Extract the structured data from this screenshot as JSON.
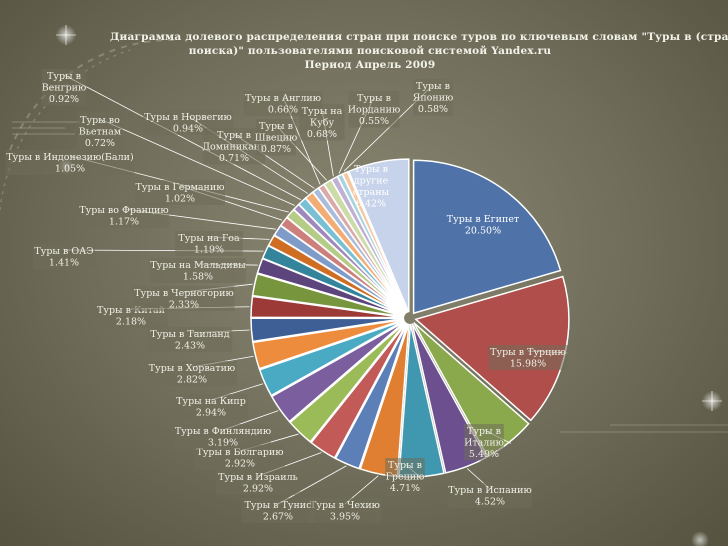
{
  "chart_data": {
    "type": "pie",
    "title_lines": [
      "Диаграмма долевого распределения стран при поиске туров по ключевым словам \"Туры в (страна",
      "поиска)\" пользователями поисковой системой Yandex.ru",
      "Период Апрель 2009"
    ],
    "slices": [
      {
        "label_lines": [
          "Туры в Египет"
        ],
        "value_text": "20.50%",
        "value": 20.5,
        "color": "#4f73a8"
      },
      {
        "label_lines": [
          "Туры в Турцию"
        ],
        "value_text": "15.98%",
        "value": 15.98,
        "color": "#b04e4b"
      },
      {
        "label_lines": [
          "Туры в",
          "Италию"
        ],
        "value_text": "5.49%",
        "value": 5.49,
        "color": "#8aa84c"
      },
      {
        "label_lines": [
          "Туры в Испанию"
        ],
        "value_text": "4.52%",
        "value": 4.52,
        "color": "#6b4f8e"
      },
      {
        "label_lines": [
          "Туры в",
          "Грецию"
        ],
        "value_text": "4.71%",
        "value": 4.71,
        "color": "#3f98b0"
      },
      {
        "label_lines": [
          "Туры в Чехию"
        ],
        "value_text": "3.95%",
        "value": 3.95,
        "color": "#e07f32"
      },
      {
        "label_lines": [
          "Туры в Тунис"
        ],
        "value_text": "2.67%",
        "value": 2.67,
        "color": "#5d7fb8"
      },
      {
        "label_lines": [
          "Туры в Израиль"
        ],
        "value_text": "2.92%",
        "value": 2.92,
        "color": "#c25a57"
      },
      {
        "label_lines": [
          "Туры в Болгарию"
        ],
        "value_text": "2.92%",
        "value": 2.92,
        "color": "#9bbb59"
      },
      {
        "label_lines": [
          "Туры в Финляндию"
        ],
        "value_text": "3.19%",
        "value": 3.19,
        "color": "#7a5e9e"
      },
      {
        "label_lines": [
          "Туры на Кипр"
        ],
        "value_text": "2.94%",
        "value": 2.94,
        "color": "#4aaac4"
      },
      {
        "label_lines": [
          "Туры в Хорватию"
        ],
        "value_text": "2.82%",
        "value": 2.82,
        "color": "#ee8c3e"
      },
      {
        "label_lines": [
          "Туры в Таиланд"
        ],
        "value_text": "2.43%",
        "value": 2.43,
        "color": "#3d5f96"
      },
      {
        "label_lines": [
          "Туры в Китай"
        ],
        "value_text": "2.18%",
        "value": 2.18,
        "color": "#9c3a37"
      },
      {
        "label_lines": [
          "Туры в Черногорию"
        ],
        "value_text": "2.33%",
        "value": 2.33,
        "color": "#77953c"
      },
      {
        "label_lines": [
          "Туры на Мальдивы"
        ],
        "value_text": "1.58%",
        "value": 1.58,
        "color": "#5c447c"
      },
      {
        "label_lines": [
          "Туры в ОАЭ"
        ],
        "value_text": "1.41%",
        "value": 1.41,
        "color": "#34849c"
      },
      {
        "label_lines": [
          "Туры на Гоа"
        ],
        "value_text": "1.19%",
        "value": 1.19,
        "color": "#cf6d22"
      },
      {
        "label_lines": [
          "Туры во Францию"
        ],
        "value_text": "1.17%",
        "value": 1.17,
        "color": "#7f9cc8"
      },
      {
        "label_lines": [
          "Туры в Германию"
        ],
        "value_text": "1.02%",
        "value": 1.02,
        "color": "#cd7f7c"
      },
      {
        "label_lines": [
          "Туры в Индонезию(Бали)"
        ],
        "value_text": "1.05%",
        "value": 1.05,
        "color": "#b5cc86"
      },
      {
        "label_lines": [
          "Туры во",
          "Вьетнам"
        ],
        "value_text": "0.72%",
        "value": 0.72,
        "color": "#9f88bb"
      },
      {
        "label_lines": [
          "Туры в",
          "Венгрию"
        ],
        "value_text": "0.92%",
        "value": 0.92,
        "color": "#79c0d4"
      },
      {
        "label_lines": [
          "Туры в Норвегию"
        ],
        "value_text": "0.94%",
        "value": 0.94,
        "color": "#f3ac73"
      },
      {
        "label_lines": [
          "Туры в",
          "Доминикану"
        ],
        "value_text": "0.71%",
        "value": 0.71,
        "color": "#a9bcdc"
      },
      {
        "label_lines": [
          "Туры в Англию"
        ],
        "value_text": "0.66%",
        "value": 0.66,
        "color": "#dba9a7"
      },
      {
        "label_lines": [
          "Туры в",
          "Швецию"
        ],
        "value_text": "0.87%",
        "value": 0.87,
        "color": "#cddba9"
      },
      {
        "label_lines": [
          "Туры на",
          "Кубу"
        ],
        "value_text": "0.68%",
        "value": 0.68,
        "color": "#bfb0d4"
      },
      {
        "label_lines": [
          "Туры в",
          "Иорданию"
        ],
        "value_text": "0.55%",
        "value": 0.55,
        "color": "#a6d4e2"
      },
      {
        "label_lines": [
          "Туры в",
          "Японию"
        ],
        "value_text": "0.58%",
        "value": 0.58,
        "color": "#f6c8a2"
      },
      {
        "label_lines": [
          "Туры в",
          "другие",
          "страны"
        ],
        "value_text": "6.42%",
        "value": 6.42,
        "color": "#c6d3ea"
      }
    ]
  }
}
